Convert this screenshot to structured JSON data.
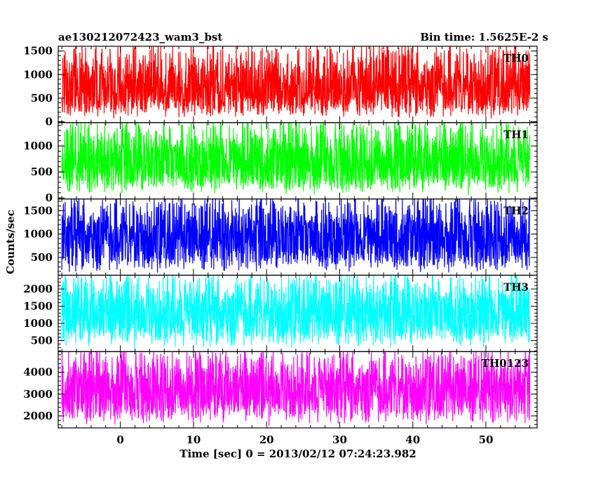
{
  "chart_data": {
    "type": "line",
    "title": "ae130212072423_wam3_bst",
    "subtitle": "Bin time: 1.5625E-2 s",
    "xlabel": "Time [sec] 0 = 2013/02/12 07:24:23.982",
    "ylabel": "Counts/sec",
    "xlim": [
      -8.5,
      57
    ],
    "x_ticks": [
      0,
      10,
      20,
      30,
      40,
      50
    ],
    "grid": false,
    "panels": [
      {
        "name": "TH0",
        "color": "#ff0000",
        "ylim": [
          -20,
          1600
        ],
        "y_ticks": [
          0,
          500,
          1000,
          1500
        ],
        "data_range": [
          -8,
          56
        ],
        "mean": 650,
        "spread_low": 40,
        "spread_high": 1600
      },
      {
        "name": "TH1",
        "color": "#00ff00",
        "ylim": [
          -20,
          1450
        ],
        "y_ticks": [
          0,
          500,
          1000
        ],
        "data_range": [
          -8,
          56
        ],
        "mean": 620,
        "spread_low": 50,
        "spread_high": 1450
      },
      {
        "name": "TH2",
        "color": "#0000ff",
        "ylim": [
          120,
          1750
        ],
        "y_ticks": [
          500,
          1000,
          1500
        ],
        "data_range": [
          -8,
          56
        ],
        "mean": 850,
        "spread_low": 150,
        "spread_high": 1750
      },
      {
        "name": "TH3",
        "color": "#00ffff",
        "ylim": [
          180,
          2400
        ],
        "y_ticks": [
          500,
          1000,
          1500,
          2000
        ],
        "data_range": [
          -8,
          56
        ],
        "mean": 1200,
        "spread_low": 250,
        "spread_high": 2400
      },
      {
        "name": "TH0123",
        "color": "#ff00ff",
        "ylim": [
          1450,
          4950
        ],
        "y_ticks": [
          2000,
          3000,
          4000
        ],
        "data_range": [
          -8,
          56
        ],
        "mean": 3050,
        "spread_low": 1550,
        "spread_high": 4950
      }
    ]
  }
}
